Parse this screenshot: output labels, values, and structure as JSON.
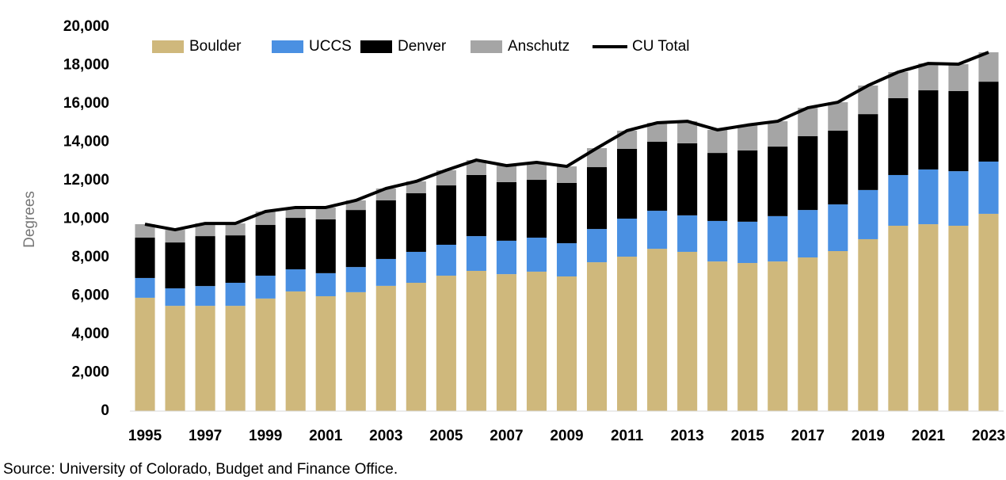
{
  "chart_data": {
    "type": "bar",
    "stacked": true,
    "y_label": "Degrees",
    "source": "Source: University of Colorado, Budget and Finance Office.",
    "categories": [
      "1995",
      null,
      "1997",
      null,
      "1999",
      null,
      "2001",
      null,
      "2003",
      null,
      "2005",
      null,
      "2007",
      null,
      "2009",
      null,
      "2011",
      null,
      "2013",
      null,
      "2015",
      null,
      "2017",
      null,
      "2019",
      null,
      "2021",
      null,
      "2023"
    ],
    "series": [
      {
        "name": "Boulder",
        "color": "#cfb87c",
        "values": [
          5900,
          5480,
          5480,
          5480,
          5860,
          6230,
          5980,
          6190,
          6520,
          6680,
          7050,
          7300,
          7130,
          7260,
          7010,
          7750,
          8040,
          8450,
          8290,
          7790,
          7710,
          7790,
          8000,
          8330,
          8950,
          9650,
          9730,
          9650,
          10270
        ]
      },
      {
        "name": "UCCS",
        "color": "#4a90e2",
        "values": [
          1030,
          910,
          1030,
          1200,
          1190,
          1150,
          1200,
          1310,
          1400,
          1610,
          1610,
          1810,
          1740,
          1770,
          1730,
          1730,
          1980,
          1980,
          1900,
          2110,
          2150,
          2360,
          2470,
          2430,
          2560,
          2640,
          2850,
          2840,
          2720
        ]
      },
      {
        "name": "Denver",
        "color": "#000000",
        "values": [
          2100,
          2390,
          2600,
          2470,
          2640,
          2680,
          2800,
          2970,
          3050,
          3050,
          3090,
          3180,
          3050,
          3010,
          3140,
          3220,
          3630,
          3590,
          3750,
          3540,
          3710,
          3620,
          3840,
          3840,
          3950,
          4000,
          4120,
          4170,
          4160
        ]
      },
      {
        "name": "Anschutz",
        "color": "#a5a5a5",
        "values": [
          700,
          660,
          660,
          620,
          700,
          540,
          620,
          500,
          620,
          620,
          790,
          780,
          860,
          910,
          860,
          990,
          950,
          990,
          1150,
          1200,
          1320,
          1320,
          1480,
          1480,
          1490,
          1360,
          1400,
          1400,
          1530
        ]
      },
      {
        "name": "CU Total",
        "color": "#000000",
        "type": "line",
        "values": [
          9730,
          9440,
          9770,
          9770,
          10390,
          10600,
          10600,
          10970,
          11590,
          11960,
          12540,
          13070,
          12780,
          12950,
          12740,
          13690,
          14600,
          15010,
          15090,
          14640,
          14890,
          15090,
          15790,
          16080,
          16950,
          17650,
          18100,
          18060,
          18680
        ]
      }
    ],
    "ylim": [
      0,
      20000
    ],
    "yticks": [
      0,
      {
        "value": 2000,
        "label": "2,000"
      },
      {
        "value": 4000,
        "label": "4,000"
      },
      {
        "value": 6000,
        "label": "6,000"
      },
      {
        "value": 8000,
        "label": "8,000"
      },
      {
        "value": 10000,
        "label": "10,000"
      },
      {
        "value": 12000,
        "label": "12,000"
      },
      {
        "value": 14000,
        "label": "14,000"
      },
      {
        "value": 16000,
        "label": "16,000"
      },
      {
        "value": 18000,
        "label": "18,000"
      },
      {
        "value": 20000,
        "label": "20,000"
      }
    ],
    "legend": "top"
  }
}
